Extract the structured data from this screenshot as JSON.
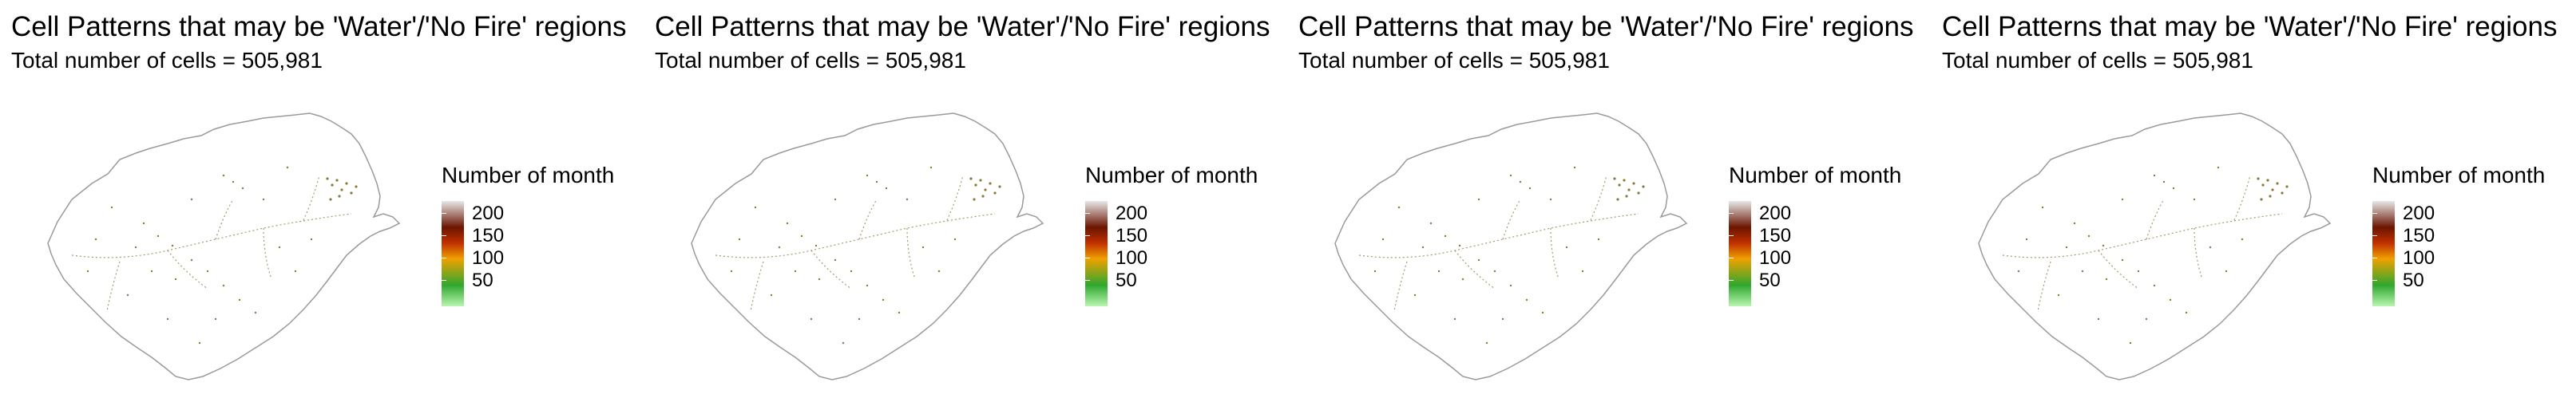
{
  "panels": [
    {
      "title": "Cell Patterns that may be 'Water'/'No Fire' regions",
      "subtitle": "Total number of cells = 505,981",
      "legend": {
        "title": "Number of month",
        "ticks": [
          "200",
          "150",
          "100",
          "50"
        ]
      }
    },
    {
      "title": "Cell Patterns that may be 'Water'/'No Fire' regions",
      "subtitle": "Total number of cells = 505,981",
      "legend": {
        "title": "Number of month",
        "ticks": [
          "200",
          "150",
          "100",
          "50"
        ]
      }
    },
    {
      "title": "Cell Patterns that may be 'Water'/'No Fire' regions",
      "subtitle": "Total number of cells = 505,981",
      "legend": {
        "title": "Number of month",
        "ticks": [
          "200",
          "150",
          "100",
          "50"
        ]
      }
    },
    {
      "title": "Cell Patterns that may be 'Water'/'No Fire' regions",
      "subtitle": "Total number of cells = 505,981",
      "legend": {
        "title": "Number of month",
        "ticks": [
          "200",
          "150",
          "100",
          "50"
        ]
      }
    }
  ],
  "colors": {
    "background": "#ffffff",
    "boundary": "#9a9a9a",
    "cell_dots": "#8a7a3a",
    "legend_scale": [
      "#b8f5b0",
      "#2fa82f",
      "#f0a000",
      "#c03000",
      "#6a1500",
      "#e8e8e8"
    ]
  }
}
